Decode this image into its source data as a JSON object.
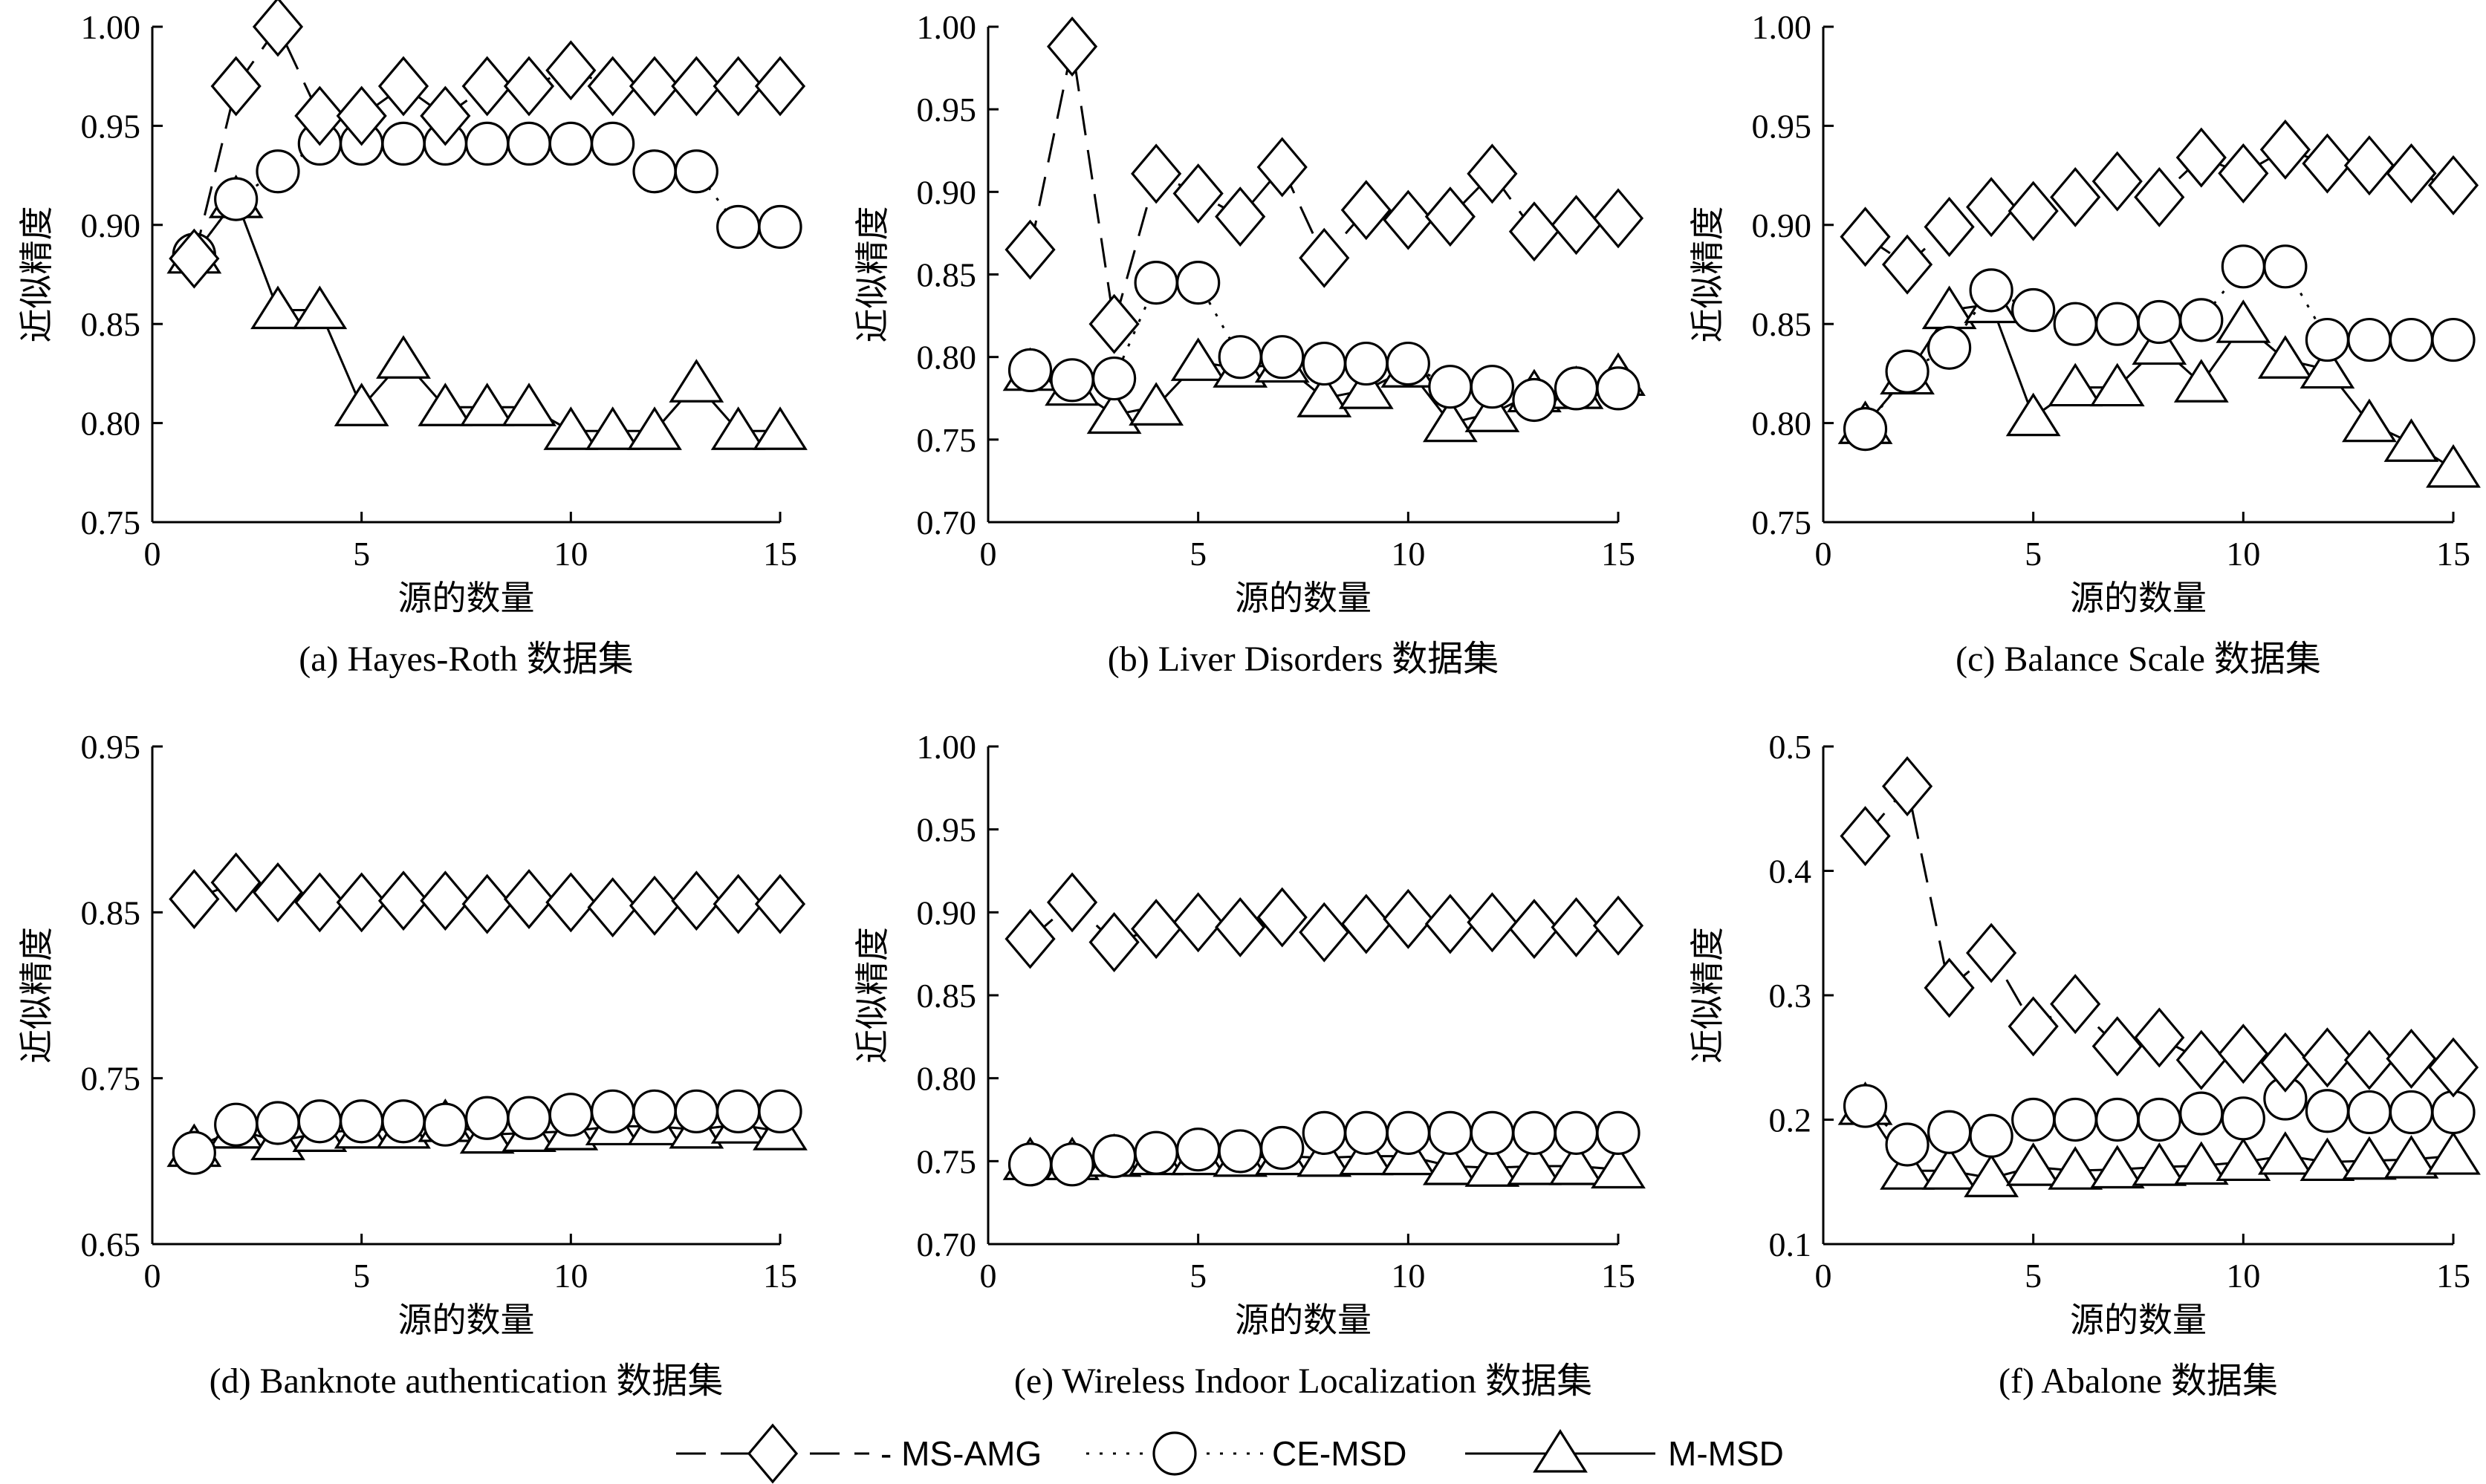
{
  "legend": [
    {
      "key": "ms",
      "label": "- MS-AMG"
    },
    {
      "key": "ce",
      "label": "CE-MSD"
    },
    {
      "key": "m",
      "label": "M-MSD"
    }
  ],
  "chart_data": [
    {
      "type": "line",
      "caption": "(a) Hayes-Roth 数据集",
      "xlabel": "源的数量",
      "ylabel": "近似精度",
      "xlim": [
        0,
        15
      ],
      "ylim": [
        0.75,
        1.0
      ],
      "xticks": [
        0,
        5,
        10,
        15
      ],
      "yticks": [
        0.75,
        0.8,
        0.85,
        0.9,
        0.95,
        1.0
      ],
      "ytick_labels": [
        "0.75",
        "0.80",
        "0.85",
        "0.90",
        "0.95",
        "1.00"
      ],
      "x": [
        1,
        2,
        3,
        4,
        5,
        6,
        7,
        8,
        9,
        10,
        11,
        12,
        13,
        14,
        15
      ],
      "series": [
        {
          "key": "ms",
          "values": [
            0.883,
            0.97,
            1.0,
            0.955,
            0.955,
            0.97,
            0.955,
            0.97,
            0.97,
            0.978,
            0.97,
            0.97,
            0.97,
            0.97,
            0.97
          ]
        },
        {
          "key": "ce",
          "values": [
            0.885,
            0.913,
            0.927,
            0.941,
            0.941,
            0.941,
            0.941,
            0.941,
            0.941,
            0.941,
            0.941,
            0.927,
            0.927,
            0.899,
            0.899
          ]
        },
        {
          "key": "m",
          "values": [
            0.885,
            0.913,
            0.857,
            0.857,
            0.808,
            0.832,
            0.808,
            0.808,
            0.808,
            0.796,
            0.796,
            0.796,
            0.82,
            0.796,
            0.796
          ]
        }
      ]
    },
    {
      "type": "line",
      "caption": "(b) Liver Disorders 数据集",
      "xlabel": "源的数量",
      "ylabel": "近似精度",
      "xlim": [
        0,
        15
      ],
      "ylim": [
        0.7,
        1.0
      ],
      "xticks": [
        0,
        5,
        10,
        15
      ],
      "yticks": [
        0.7,
        0.75,
        0.8,
        0.85,
        0.9,
        0.95,
        1.0
      ],
      "ytick_labels": [
        "0.70",
        "0.75",
        "0.80",
        "0.85",
        "0.90",
        "0.95",
        "1.00"
      ],
      "x": [
        1,
        2,
        3,
        4,
        5,
        6,
        7,
        8,
        9,
        10,
        11,
        12,
        13,
        14,
        15
      ],
      "series": [
        {
          "key": "ms",
          "values": [
            0.865,
            0.988,
            0.82,
            0.911,
            0.899,
            0.885,
            0.915,
            0.86,
            0.889,
            0.883,
            0.885,
            0.911,
            0.876,
            0.88,
            0.884
          ]
        },
        {
          "key": "ce",
          "values": [
            0.792,
            0.786,
            0.787,
            0.845,
            0.845,
            0.8,
            0.8,
            0.796,
            0.796,
            0.796,
            0.782,
            0.782,
            0.774,
            0.781,
            0.781
          ]
        },
        {
          "key": "m",
          "values": [
            0.791,
            0.782,
            0.765,
            0.77,
            0.797,
            0.793,
            0.796,
            0.775,
            0.78,
            0.793,
            0.76,
            0.766,
            0.778,
            0.78,
            0.788
          ]
        }
      ]
    },
    {
      "type": "line",
      "caption": "(c) Balance Scale 数据集",
      "xlabel": "源的数量",
      "ylabel": "近似精度",
      "xlim": [
        0,
        15
      ],
      "ylim": [
        0.75,
        1.0
      ],
      "xticks": [
        0,
        5,
        10,
        15
      ],
      "yticks": [
        0.75,
        0.8,
        0.85,
        0.9,
        0.95,
        1.0
      ],
      "ytick_labels": [
        "0.75",
        "0.80",
        "0.85",
        "0.90",
        "0.95",
        "1.00"
      ],
      "x": [
        1,
        2,
        3,
        4,
        5,
        6,
        7,
        8,
        9,
        10,
        11,
        12,
        13,
        14,
        15
      ],
      "series": [
        {
          "key": "ms",
          "values": [
            0.894,
            0.88,
            0.899,
            0.909,
            0.907,
            0.914,
            0.922,
            0.914,
            0.934,
            0.926,
            0.938,
            0.931,
            0.93,
            0.926,
            0.92
          ]
        },
        {
          "key": "ce",
          "values": [
            0.797,
            0.826,
            0.838,
            0.867,
            0.857,
            0.85,
            0.85,
            0.851,
            0.852,
            0.879,
            0.879,
            0.842,
            0.842,
            0.842,
            0.842
          ]
        },
        {
          "key": "m",
          "values": [
            0.799,
            0.824,
            0.857,
            0.86,
            0.803,
            0.818,
            0.818,
            0.839,
            0.82,
            0.85,
            0.832,
            0.827,
            0.8,
            0.79,
            0.777
          ]
        }
      ]
    },
    {
      "type": "line",
      "caption": "(d) Banknote authentication 数据集",
      "xlabel": "源的数量",
      "ylabel": "近似精度",
      "xlim": [
        0,
        15
      ],
      "ylim": [
        0.65,
        0.95
      ],
      "xticks": [
        0,
        5,
        10,
        15
      ],
      "yticks": [
        0.65,
        0.75,
        0.85,
        0.95
      ],
      "ytick_labels": [
        "0.65",
        "0.75",
        "0.85",
        "0.95"
      ],
      "x": [
        1,
        2,
        3,
        4,
        5,
        6,
        7,
        8,
        9,
        10,
        11,
        12,
        13,
        14,
        15
      ],
      "series": [
        {
          "key": "ms",
          "values": [
            0.858,
            0.868,
            0.862,
            0.856,
            0.856,
            0.857,
            0.857,
            0.855,
            0.858,
            0.856,
            0.853,
            0.854,
            0.857,
            0.855,
            0.855
          ]
        },
        {
          "key": "ce",
          "values": [
            0.705,
            0.722,
            0.723,
            0.724,
            0.724,
            0.724,
            0.722,
            0.726,
            0.726,
            0.728,
            0.73,
            0.73,
            0.73,
            0.73,
            0.73
          ]
        },
        {
          "key": "m",
          "values": [
            0.708,
            0.719,
            0.712,
            0.717,
            0.719,
            0.719,
            0.723,
            0.716,
            0.717,
            0.718,
            0.721,
            0.721,
            0.719,
            0.722,
            0.718
          ]
        }
      ]
    },
    {
      "type": "line",
      "caption": "(e) Wireless Indoor Localization 数据集",
      "xlabel": "源的数量",
      "ylabel": "近似精度",
      "xlim": [
        0,
        15
      ],
      "ylim": [
        0.7,
        1.0
      ],
      "xticks": [
        0,
        5,
        10,
        15
      ],
      "yticks": [
        0.7,
        0.75,
        0.8,
        0.85,
        0.9,
        0.95,
        1.0
      ],
      "ytick_labels": [
        "0.70",
        "0.75",
        "0.80",
        "0.85",
        "0.90",
        "0.95",
        "1.00"
      ],
      "x": [
        1,
        2,
        3,
        4,
        5,
        6,
        7,
        8,
        9,
        10,
        11,
        12,
        13,
        14,
        15
      ],
      "series": [
        {
          "key": "ms",
          "values": [
            0.884,
            0.906,
            0.882,
            0.89,
            0.894,
            0.891,
            0.897,
            0.888,
            0.893,
            0.896,
            0.893,
            0.894,
            0.89,
            0.891,
            0.892
          ]
        },
        {
          "key": "ce",
          "values": [
            0.748,
            0.748,
            0.753,
            0.755,
            0.757,
            0.756,
            0.758,
            0.767,
            0.767,
            0.767,
            0.767,
            0.767,
            0.767,
            0.767,
            0.767
          ]
        },
        {
          "key": "m",
          "values": [
            0.75,
            0.75,
            0.752,
            0.753,
            0.753,
            0.752,
            0.753,
            0.752,
            0.753,
            0.753,
            0.747,
            0.746,
            0.747,
            0.747,
            0.745
          ]
        }
      ]
    },
    {
      "type": "line",
      "caption": "(f) Abalone 数据集",
      "xlabel": "源的数量",
      "ylabel": "近似精度",
      "xlim": [
        0,
        15
      ],
      "ylim": [
        0.1,
        0.5
      ],
      "xticks": [
        0,
        5,
        10,
        15
      ],
      "yticks": [
        0.1,
        0.2,
        0.3,
        0.4,
        0.5
      ],
      "ytick_labels": [
        "0.1",
        "0.2",
        "0.3",
        "0.4",
        "0.5"
      ],
      "x": [
        1,
        2,
        3,
        4,
        5,
        6,
        7,
        8,
        9,
        10,
        11,
        12,
        13,
        14,
        15
      ],
      "series": [
        {
          "key": "ms",
          "values": [
            0.428,
            0.468,
            0.306,
            0.334,
            0.275,
            0.293,
            0.259,
            0.266,
            0.248,
            0.253,
            0.246,
            0.25,
            0.248,
            0.249,
            0.242
          ]
        },
        {
          "key": "ce",
          "values": [
            0.211,
            0.18,
            0.19,
            0.187,
            0.2,
            0.2,
            0.2,
            0.2,
            0.205,
            0.201,
            0.217,
            0.207,
            0.206,
            0.206,
            0.206
          ]
        },
        {
          "key": "m",
          "values": [
            0.211,
            0.159,
            0.159,
            0.153,
            0.162,
            0.159,
            0.16,
            0.162,
            0.163,
            0.166,
            0.171,
            0.166,
            0.167,
            0.168,
            0.171
          ]
        }
      ]
    }
  ]
}
